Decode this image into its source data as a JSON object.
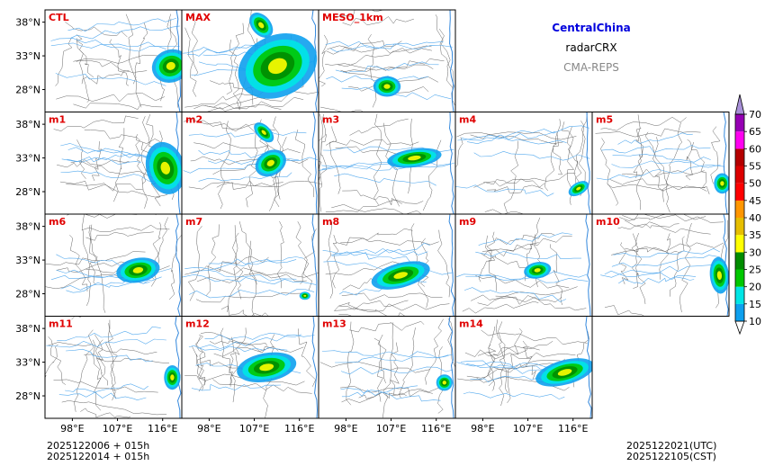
{
  "header": {
    "region": "CentralChina",
    "variable": "radarCRX",
    "model": "CMA-REPS"
  },
  "panels": [
    {
      "label": "CTL"
    },
    {
      "label": "MAX"
    },
    {
      "label": "MESO_1km"
    },
    {
      "label": "m1"
    },
    {
      "label": "m2"
    },
    {
      "label": "m3"
    },
    {
      "label": "m4"
    },
    {
      "label": "m5"
    },
    {
      "label": "m6"
    },
    {
      "label": "m7"
    },
    {
      "label": "m8"
    },
    {
      "label": "m9"
    },
    {
      "label": "m10"
    },
    {
      "label": "m11"
    },
    {
      "label": "m12"
    },
    {
      "label": "m13"
    },
    {
      "label": "m14"
    }
  ],
  "axes": {
    "lat_ticks": [
      "38°N",
      "33°N",
      "28°N"
    ],
    "lon_ticks": [
      "98°E",
      "107°E",
      "116°E"
    ]
  },
  "colorbar": {
    "levels": [
      "10",
      "15",
      "20",
      "25",
      "30",
      "35",
      "40",
      "45",
      "50",
      "55",
      "60",
      "65",
      "70"
    ],
    "colors": [
      "#0ea0ee",
      "#00e6e6",
      "#00c800",
      "#008c00",
      "#ffff00",
      "#e6be00",
      "#ff9600",
      "#ff0000",
      "#dc0000",
      "#b40000",
      "#ff00f0",
      "#9600b4",
      "#a890d8"
    ]
  },
  "footer": {
    "init_utc": "2025122006  +  015h",
    "init_cst": "2025122014  +  015h",
    "valid_utc": "2025122021(UTC)",
    "valid_cst": "2025122105(CST)"
  }
}
